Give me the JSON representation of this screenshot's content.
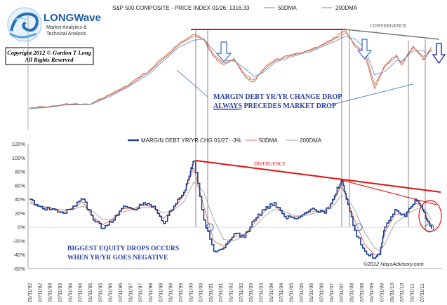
{
  "logo": {
    "name": "LONGWave",
    "tagline_1": "Market Analytics &",
    "tagline_2": "Technical Analysis"
  },
  "copyright": {
    "line_1": "Copyright 2012 © Gordon T Long",
    "line_2": "All Rights Reserved"
  },
  "watermark": "©2012 HaysAdvisory.com",
  "annotations": {
    "convergence": "CONVERGENCE",
    "divergence": "DIVERGENCE",
    "margin_line_1": "MARGIN DEBT YR/YR CHANGE DROP",
    "margin_word_always": "ALWAYS",
    "margin_line_2_rest": " PRECEDES MARKET DROP",
    "biggest_line_1": "BIGGEST EQUITY DROPS OCCURS",
    "biggest_line_2": "WHEN YR/YR GOES NEGATIVE"
  },
  "colors": {
    "price_series": "#c8704a",
    "ma_50": "#d46a5a",
    "ma_200": "#6b8fc4",
    "margin_series": "#1f3f8f",
    "margin_ma_200": "#a0a0a0",
    "trend_red": "#e01010",
    "annotation_blue": "#2a3fa0",
    "arrow_blue": "#3a66c8",
    "convergence_line": "#777777",
    "vertical_marker": "#555555"
  },
  "chart_data": [
    {
      "type": "line",
      "legend": [
        "S&P 500 COMPOSITE - PRICE INDEX 01/26: 1316.33",
        "50DMA",
        "200DMA"
      ],
      "legend_placement": "top",
      "grid": false,
      "x": [
        "1992-01",
        "1993-01",
        "1994-01",
        "1995-01",
        "1996-01",
        "1997-01",
        "1998-01",
        "1998-07",
        "1999-01",
        "1999-07",
        "2000-03",
        "2000-09",
        "2001-03",
        "2001-09",
        "2002-03",
        "2002-10",
        "2003-03",
        "2003-09",
        "2004-03",
        "2005-01",
        "2006-01",
        "2007-01",
        "2007-10",
        "2008-03",
        "2008-09",
        "2009-03",
        "2009-09",
        "2010-04",
        "2010-07",
        "2011-02",
        "2011-08",
        "2011-10",
        "2012-01"
      ],
      "series": [
        {
          "name": "S&P 500 COMPOSITE - PRICE INDEX 01/26: 1316.33",
          "values": [
            415,
            435,
            470,
            460,
            610,
            770,
            980,
            1130,
            1240,
            1390,
            1510,
            1430,
            1170,
            1050,
            1150,
            860,
            800,
            1000,
            1120,
            1200,
            1280,
            1420,
            1560,
            1330,
            1210,
            700,
            1050,
            1200,
            1050,
            1330,
            1130,
            1200,
            1316
          ]
        },
        {
          "name": "50DMA",
          "values": [
            410,
            432,
            468,
            462,
            600,
            760,
            960,
            1100,
            1230,
            1370,
            1480,
            1440,
            1200,
            1080,
            1130,
            900,
            830,
            980,
            1110,
            1190,
            1270,
            1410,
            1530,
            1360,
            1250,
            760,
            1020,
            1180,
            1080,
            1310,
            1180,
            1190,
            1280
          ]
        },
        {
          "name": "200DMA",
          "values": [
            400,
            425,
            460,
            465,
            580,
            740,
            930,
            1070,
            1200,
            1330,
            1420,
            1440,
            1270,
            1120,
            1110,
            990,
            880,
            950,
            1080,
            1170,
            1250,
            1380,
            1480,
            1440,
            1300,
            900,
            950,
            1120,
            1110,
            1260,
            1260,
            1230,
            1260
          ]
        }
      ]
    },
    {
      "type": "line",
      "legend": [
        "MARGIN DEBT YR/YR CHG 01/27: -3%",
        "50DMA",
        "200DMA"
      ],
      "legend_placement": "top",
      "grid": false,
      "ylim": [
        -60,
        120
      ],
      "y_ticks": [
        "120%",
        "100%",
        "80%",
        "60%",
        "40%",
        "20%",
        "0%",
        "-20%",
        "-40%",
        "-60%"
      ],
      "x_ticks": [
        "01/31/92",
        "07/31/92",
        "01/31/93",
        "07/31/93",
        "01/31/94",
        "07/31/94",
        "01/31/95",
        "07/31/95",
        "01/31/96",
        "07/31/96",
        "01/31/97",
        "07/31/97",
        "01/31/98",
        "07/31/98",
        "01/31/99",
        "07/31/99",
        "01/31/00",
        "07/31/00",
        "01/31/01",
        "07/31/01",
        "01/31/02",
        "07/31/02",
        "01/31/03",
        "07/31/03",
        "01/31/04",
        "07/31/04",
        "01/31/05",
        "07/31/05",
        "01/31/06",
        "07/31/06",
        "01/31/07",
        "07/31/07",
        "01/31/08",
        "07/31/08",
        "01/31/09",
        "07/31/09",
        "01/31/10",
        "07/31/10",
        "01/31/11",
        "07/31/11"
      ],
      "x": [
        "1992-01",
        "1992-06",
        "1993-01",
        "1993-09",
        "1994-03",
        "1994-09",
        "1995-03",
        "1995-09",
        "1996-03",
        "1996-09",
        "1997-03",
        "1997-09",
        "1998-03",
        "1998-09",
        "1999-03",
        "1999-09",
        "2000-01",
        "2000-03",
        "2000-09",
        "2001-03",
        "2001-09",
        "2002-03",
        "2002-09",
        "2003-03",
        "2003-09",
        "2004-03",
        "2004-09",
        "2005-03",
        "2005-09",
        "2006-03",
        "2006-09",
        "2007-03",
        "2007-07",
        "2007-10",
        "2008-03",
        "2008-09",
        "2009-03",
        "2009-06",
        "2009-09",
        "2010-03",
        "2010-09",
        "2011-03",
        "2011-07",
        "2011-10",
        "2012-01"
      ],
      "series": [
        {
          "name": "MARGIN DEBT YR/YR CHG 01/27: -3%",
          "values": [
            40,
            30,
            25,
            20,
            30,
            40,
            10,
            -2,
            10,
            30,
            25,
            35,
            30,
            5,
            30,
            50,
            80,
            95,
            10,
            -35,
            -30,
            -10,
            -15,
            10,
            25,
            35,
            15,
            12,
            20,
            25,
            20,
            45,
            68,
            40,
            -5,
            -35,
            -45,
            -40,
            0,
            25,
            15,
            40,
            30,
            10,
            -3
          ]
        },
        {
          "name": "50DMA",
          "values": [
            38,
            31,
            26,
            22,
            28,
            36,
            14,
            3,
            12,
            27,
            26,
            32,
            28,
            12,
            26,
            45,
            72,
            85,
            30,
            -20,
            -28,
            -14,
            -12,
            5,
            22,
            32,
            18,
            14,
            18,
            23,
            22,
            40,
            60,
            45,
            10,
            -25,
            -40,
            -38,
            -8,
            18,
            18,
            35,
            30,
            15,
            2
          ]
        },
        {
          "name": "200DMA",
          "values": [
            34,
            31,
            28,
            25,
            26,
            30,
            22,
            10,
            12,
            22,
            25,
            28,
            28,
            20,
            24,
            36,
            55,
            65,
            50,
            10,
            -18,
            -20,
            -12,
            0,
            15,
            25,
            22,
            16,
            16,
            20,
            22,
            32,
            45,
            45,
            25,
            -8,
            -30,
            -35,
            -25,
            5,
            15,
            25,
            28,
            22,
            10
          ]
        }
      ]
    }
  ]
}
